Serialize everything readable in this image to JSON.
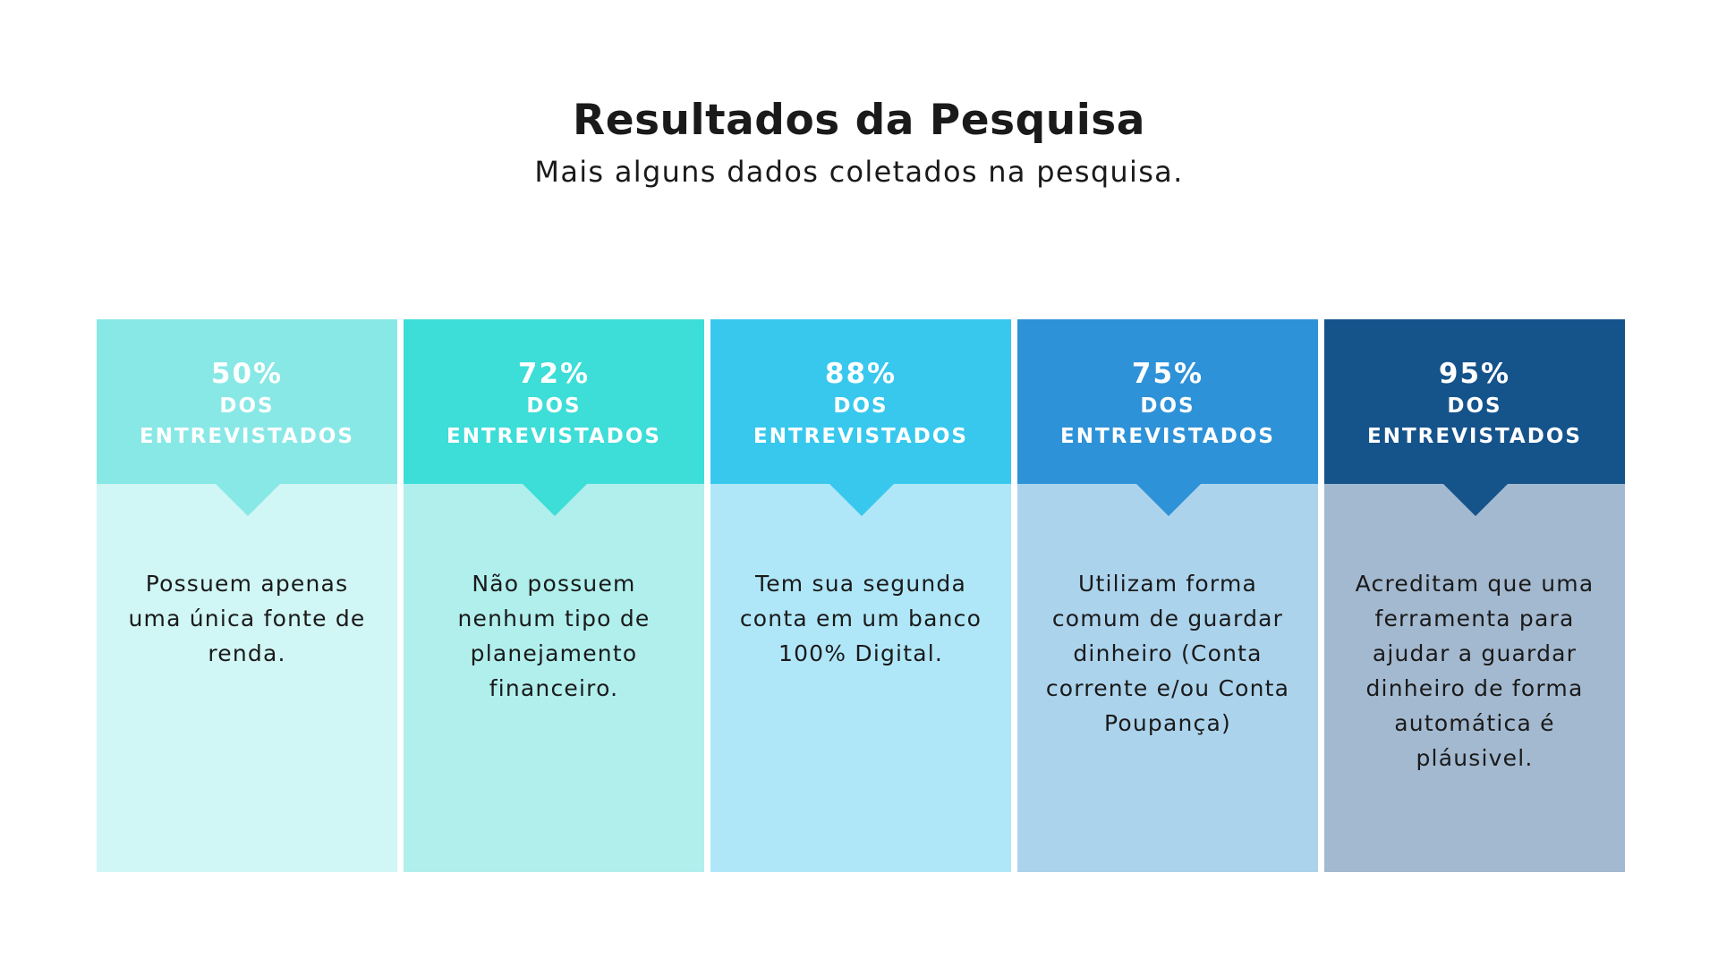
{
  "header": {
    "title": "Resultados da Pesquisa",
    "subtitle": "Mais alguns dados coletados na pesquisa."
  },
  "cards": [
    {
      "percent": "50%",
      "label": "DOS\nENTREVISTADOS",
      "description": "Possuem apenas uma única fonte de renda.",
      "value": 50,
      "head_color": "#88e8e6",
      "body_color": "#d0f6f5"
    },
    {
      "percent": "72%",
      "label": "DOS\nENTREVISTADOS",
      "description": "Não possuem nenhum tipo de planejamento financeiro.",
      "value": 72,
      "head_color": "#3dddd8",
      "body_color": "#b1efed"
    },
    {
      "percent": "88%",
      "label": "DOS\nENTREVISTADOS",
      "description": "Tem sua segunda conta em um banco 100% Digital.",
      "value": 88,
      "head_color": "#38c8ee",
      "body_color": "#b0e7f8"
    },
    {
      "percent": "75%",
      "label": "DOS\nENTREVISTADOS",
      "description": "Utilizam forma comum de guardar dinheiro (Conta corrente e/ou Conta Poupança)",
      "value": 75,
      "head_color": "#2e92d8",
      "body_color": "#acd3ec"
    },
    {
      "percent": "95%",
      "label": "DOS\nENTREVISTADOS",
      "description": "Acreditam que uma ferramenta para ajudar a guardar dinheiro de forma automática é pláusivel.",
      "value": 95,
      "head_color": "#15538b",
      "body_color": "#a3b9d0"
    }
  ]
}
